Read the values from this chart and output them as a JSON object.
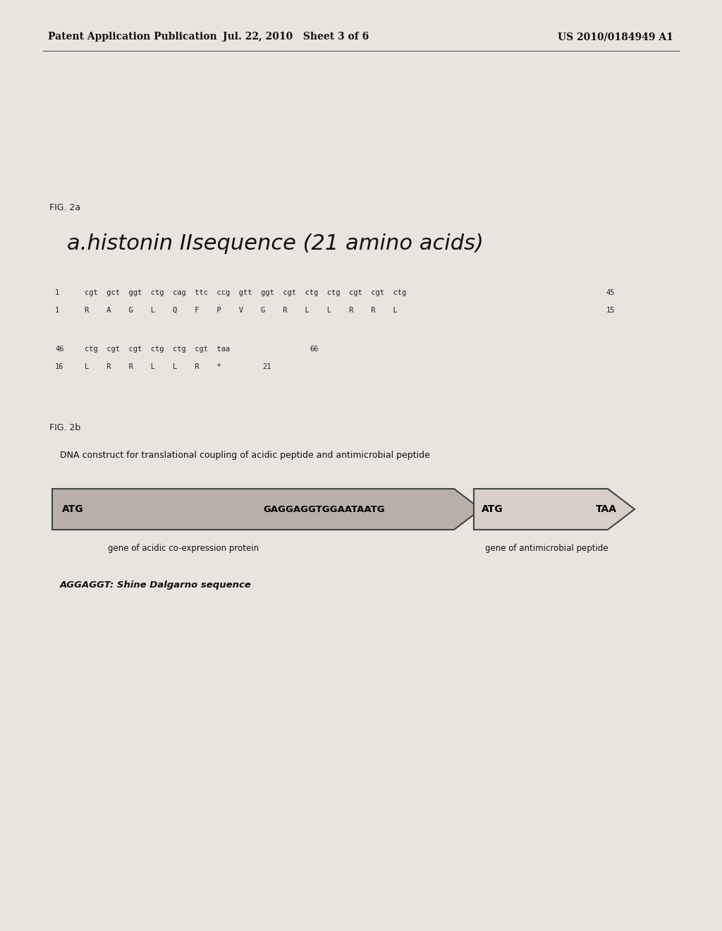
{
  "background_color": "#e8e4de",
  "header_left": "Patent Application Publication",
  "header_center": "Jul. 22, 2010   Sheet 3 of 6",
  "header_right": "US 2010/0184949 A1",
  "fig2a_label": "FIG. 2a",
  "fig2a_title": "a.histonin IIsequence (21 amino acids)",
  "seq_line1_num_left": "1",
  "seq_line1_dna": "cgt  gct  ggt  ctg  cag  ttc  ccg  gtt  ggt  cgt  ctg  ctg  cgt  cgt  ctg",
  "seq_line1_num_right": "45",
  "seq_line1_aa_num_left": "1",
  "seq_line1_aa": "R    A    G    L    Q    F    P    V    G    R    L    L    R    R    L",
  "seq_line1_aa_num_right": "15",
  "seq_line2_num_left": "46",
  "seq_line2_dna": "ctg  cgt  cgt  ctg  ctg  cgt  taa",
  "seq_line2_num_right": "66",
  "seq_line2_aa_num_left": "16",
  "seq_line2_aa": "L    R    R    L    L    R    *",
  "seq_line2_aa_num_right": "21",
  "fig2b_label": "FIG. 2b",
  "fig2b_title": "DNA construct for translational coupling of acidic peptide and antimicrobial peptide",
  "arrow1_color": "#b8b0a8",
  "arrow2_color": "#d8d0c8",
  "label_below_arrow1": "gene of acidic co-expression protein",
  "label_below_arrow2": "gene of antimicrobial peptide",
  "shine_dalgarno_note": "AGGAGGT: Shine Dalgarno sequence"
}
